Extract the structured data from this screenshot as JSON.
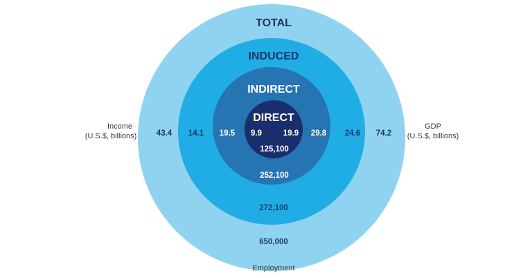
{
  "colors": {
    "total": "#8fd3f1",
    "induced": "#20ade6",
    "indirect": "#2674b2",
    "direct": "#1a2d6d",
    "dark_text": "#1f3566",
    "light_text": "#ffffff"
  },
  "rings": {
    "total": {
      "title": "TOTAL",
      "income": "43.4",
      "gdp": "74.2",
      "employment": "650,000"
    },
    "induced": {
      "title": "INDUCED",
      "income": "14.1",
      "gdp": "24.6",
      "employment": "272,100"
    },
    "indirect": {
      "title": "INDIRECT",
      "income": "19.5",
      "gdp": "29.8",
      "employment": "252,100"
    },
    "direct": {
      "title": "DIRECT",
      "income": "9.9",
      "gdp": "19.9",
      "employment": "125,100"
    }
  },
  "labels": {
    "income_line1": "Income",
    "income_line2": "(U.S.$, billions)",
    "gdp_line1": "GDP",
    "gdp_line2": "(U.S.$, billions)",
    "employment": "Employment"
  }
}
